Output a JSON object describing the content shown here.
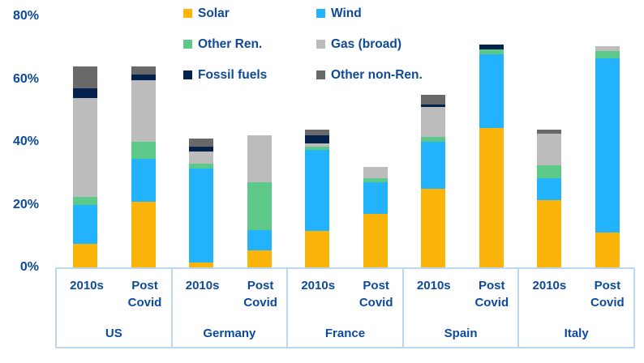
{
  "colors": {
    "text": "#0d4a9a",
    "axis_box": "#bdd7ee",
    "background": "#ffffff"
  },
  "chart_data": {
    "type": "bar",
    "subtype": "stacked-vertical",
    "title": "",
    "xlabel": "",
    "ylabel": "",
    "unit": "%",
    "ylim": [
      0,
      80
    ],
    "grid": false,
    "legend_position": "top",
    "yticks": [
      {
        "label": "0%",
        "value": 0
      },
      {
        "label": "20%",
        "value": 20
      },
      {
        "label": "40%",
        "value": 40
      },
      {
        "label": "60%",
        "value": 60
      },
      {
        "label": "80%",
        "value": 80
      }
    ],
    "series_order": [
      "solar",
      "wind",
      "other_ren",
      "gas",
      "fossil",
      "other_nonren"
    ],
    "series_colors": {
      "solar": "#fbb409",
      "wind": "#23b2fc",
      "other_ren": "#5dc989",
      "gas": "#bcbcbc",
      "fossil": "#03224c",
      "other_nonren": "#696969"
    },
    "legend": [
      {
        "key": "solar",
        "label": "Solar"
      },
      {
        "key": "wind",
        "label": "Wind"
      },
      {
        "key": "other_ren",
        "label": "Other Ren."
      },
      {
        "key": "gas",
        "label": "Gas (broad)"
      },
      {
        "key": "fossil",
        "label": "Fossil fuels"
      },
      {
        "key": "other_nonren",
        "label": "Other non-Ren."
      }
    ],
    "groups": [
      {
        "country": "US",
        "bars": [
          {
            "period": "2010s",
            "values": {
              "solar": 7.5,
              "wind": 12.5,
              "other_ren": 2.5,
              "gas": 31.5,
              "fossil": 3,
              "other_nonren": 7
            }
          },
          {
            "period": "Post Covid",
            "values": {
              "solar": 21,
              "wind": 13.5,
              "other_ren": 5.5,
              "gas": 19.5,
              "fossil": 2,
              "other_nonren": 2.5
            }
          }
        ]
      },
      {
        "country": "Germany",
        "bars": [
          {
            "period": "2010s",
            "values": {
              "solar": 1.5,
              "wind": 30,
              "other_ren": 1.5,
              "gas": 4,
              "fossil": 1.5,
              "other_nonren": 2.5
            }
          },
          {
            "period": "Post Covid",
            "values": {
              "solar": 5.5,
              "wind": 6.5,
              "other_ren": 15,
              "gas": 15,
              "fossil": 0,
              "other_nonren": 0
            }
          }
        ]
      },
      {
        "country": "France",
        "bars": [
          {
            "period": "2010s",
            "values": {
              "solar": 11.5,
              "wind": 26,
              "other_ren": 1,
              "gas": 1,
              "fossil": 2.5,
              "other_nonren": 2
            }
          },
          {
            "period": "Post Covid",
            "values": {
              "solar": 17,
              "wind": 10,
              "other_ren": 1.5,
              "gas": 3.5,
              "fossil": 0,
              "other_nonren": 0
            }
          }
        ]
      },
      {
        "country": "Spain",
        "bars": [
          {
            "period": "2010s",
            "values": {
              "solar": 25,
              "wind": 15,
              "other_ren": 1.5,
              "gas": 9.5,
              "fossil": 1,
              "other_nonren": 3
            }
          },
          {
            "period": "Post Covid",
            "values": {
              "solar": 44.5,
              "wind": 23.5,
              "other_ren": 1.5,
              "gas": 0,
              "fossil": 1.5,
              "other_nonren": 0
            }
          }
        ]
      },
      {
        "country": "Italy",
        "bars": [
          {
            "period": "2010s",
            "values": {
              "solar": 21.5,
              "wind": 7,
              "other_ren": 4,
              "gas": 10,
              "fossil": 0,
              "other_nonren": 1.5
            }
          },
          {
            "period": "Post Covid",
            "values": {
              "solar": 11,
              "wind": 55.5,
              "other_ren": 2.5,
              "gas": 1.5,
              "fossil": 0,
              "other_nonren": 0
            }
          }
        ]
      }
    ]
  }
}
